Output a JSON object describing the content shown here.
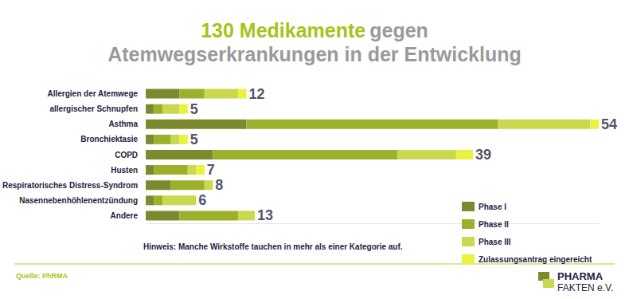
{
  "chart_data": {
    "type": "bar",
    "orientation": "horizontal",
    "stacked": true,
    "title": "130 Medikamente gegen Atemwegserkrankungen in der Entwicklung",
    "categories": [
      "Allergien der Atemwege",
      "allergischer Schnupfen",
      "Asthma",
      "Bronchiektasie",
      "COPD",
      "Husten",
      "Respiratorisches Distress-Syndrom",
      "Nasennebenhöhlenentzündung",
      "Andere"
    ],
    "series": [
      {
        "name": "Phase I",
        "color": "#7b8a2e",
        "values": [
          4,
          1,
          12,
          1,
          8,
          1,
          3,
          1,
          4
        ]
      },
      {
        "name": "Phase II",
        "color": "#9db02c",
        "values": [
          3,
          1,
          30,
          2,
          22,
          4,
          4,
          1,
          7
        ]
      },
      {
        "name": "Phase III",
        "color": "#c9d84d",
        "values": [
          4,
          2,
          11,
          1,
          7,
          1,
          1,
          4,
          2
        ]
      },
      {
        "name": "Zulassungsantrag eingereicht",
        "color": "#e9f23c",
        "values": [
          1,
          1,
          1,
          1,
          2,
          1,
          0,
          0,
          0
        ]
      }
    ],
    "totals": [
      12,
      5,
      54,
      5,
      39,
      7,
      8,
      6,
      13
    ],
    "xlim": [
      0,
      54
    ],
    "xticks": [],
    "tick_labels": "y",
    "grid": false,
    "legend": "bottom-right",
    "note": "Hinweis: Manche Wirkstoffe tauchen in mehr als einer Kategorie auf.",
    "source": "Quelle: PhRMA",
    "logo": "PHARMA FAKTEN e.V."
  }
}
